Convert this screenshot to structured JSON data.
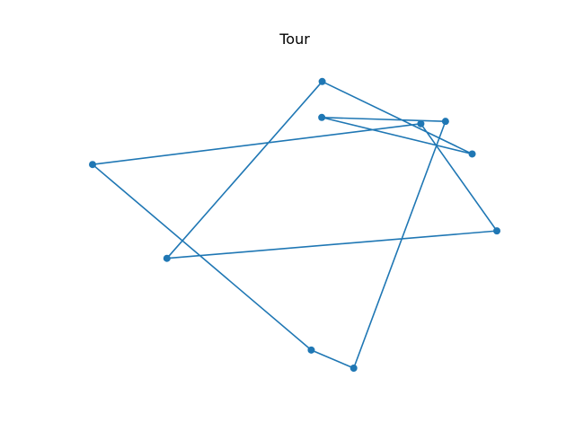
{
  "chart_data": {
    "type": "line",
    "title": "Tour",
    "xlabel": "",
    "ylabel": "",
    "axes_visible": false,
    "grid": false,
    "xlim": [
      0.0,
      1.0
    ],
    "ylim": [
      0.0,
      1.0
    ],
    "series": [
      {
        "color": "#1f77b4",
        "marker": "circle",
        "closed": true,
        "points": [
          {
            "x": 0.568,
            "y": 0.95
          },
          {
            "x": 0.939,
            "y": 0.71
          },
          {
            "x": 0.567,
            "y": 0.831
          },
          {
            "x": 0.873,
            "y": 0.818
          },
          {
            "x": 0.646,
            "y": 0.0
          },
          {
            "x": 0.541,
            "y": 0.06
          },
          {
            "x": 0.0,
            "y": 0.675
          },
          {
            "x": 0.812,
            "y": 0.81
          },
          {
            "x": 1.0,
            "y": 0.455
          },
          {
            "x": 0.184,
            "y": 0.364
          }
        ]
      }
    ]
  }
}
